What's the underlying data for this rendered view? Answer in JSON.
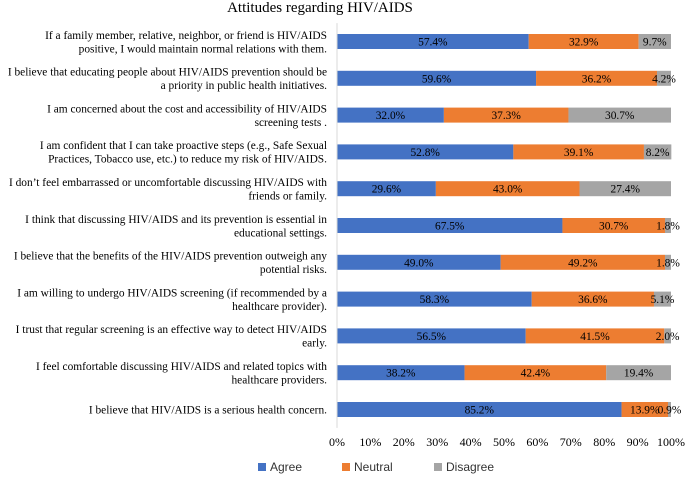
{
  "chart_data": {
    "type": "bar",
    "orientation": "horizontal",
    "stacked": true,
    "title": "Attitudes regarding HIV/AIDS",
    "xlabel": "",
    "ylabel": "",
    "xlim": [
      0,
      100
    ],
    "x_tick_labels": [
      "0%",
      "10%",
      "20%",
      "30%",
      "40%",
      "50%",
      "60%",
      "70%",
      "80%",
      "90%",
      "100%"
    ],
    "grid": false,
    "legend_position": "bottom",
    "categories": [
      [
        "If a family member, relative, neighbor, or friend is HIV/AIDS",
        "positive, I would maintain normal relations with them."
      ],
      [
        "I believe that educating people about HIV/AIDS prevention should be",
        "a priority in public health initiatives."
      ],
      [
        "I am  concerned about the cost and accessibility of HIV/AIDS",
        "screening tests ."
      ],
      [
        "I am confident that I can take proactive steps (e.g., Safe Sexual",
        "Practices, Tobacco use, etc.) to reduce my risk of HIV/AIDS."
      ],
      [
        "I don’t feel embarrassed or uncomfortable discussing HIV/AIDS with",
        "friends or family."
      ],
      [
        "I think that discussing HIV/AIDS and its prevention is essential in",
        "educational settings."
      ],
      [
        "I believe that the benefits of the HIV/AIDS prevention outweigh any",
        "potential risks."
      ],
      [
        "I am willing to undergo HIV/AIDS screening (if recommended by a",
        "healthcare provider)."
      ],
      [
        "I trust that regular screening is an effective way to detect HIV/AIDS",
        "early."
      ],
      [
        "I feel comfortable discussing HIV/AIDS and related topics with",
        "healthcare providers."
      ],
      [
        "I believe that HIV/AIDS is a serious health concern."
      ]
    ],
    "series": [
      {
        "name": "Agree",
        "color": "#4472C4",
        "values": [
          57.4,
          59.6,
          32.0,
          52.8,
          29.6,
          67.5,
          49.0,
          58.3,
          56.5,
          38.2,
          85.2
        ],
        "labels": [
          "57.4%",
          "59.6%",
          "32.0%",
          "52.8%",
          "29.6%",
          "67.5%",
          "49.0%",
          "58.3%",
          "56.5%",
          "38.2%",
          "85.2%"
        ]
      },
      {
        "name": "Neutral",
        "color": "#ED7D31",
        "values": [
          32.9,
          36.2,
          37.3,
          39.1,
          43.0,
          30.7,
          49.2,
          36.6,
          41.5,
          42.4,
          13.9
        ],
        "labels": [
          "32.9%",
          "36.2%",
          "37.3%",
          "39.1%",
          "43.0%",
          "30.7%",
          "49.2%",
          "36.6%",
          "41.5%",
          "42.4%",
          "13.9%"
        ]
      },
      {
        "name": "Disagree",
        "color": "#A5A5A5",
        "values": [
          9.7,
          4.2,
          30.7,
          8.2,
          27.4,
          1.8,
          1.8,
          5.1,
          2.0,
          19.4,
          0.9
        ],
        "labels": [
          "9.7%",
          "4.2%",
          "30.7%",
          "8.2%",
          "27.4%",
          "1.8%",
          "1.8%",
          "5.1%",
          "2.0%",
          "19.4%",
          "0.9%"
        ]
      }
    ]
  }
}
